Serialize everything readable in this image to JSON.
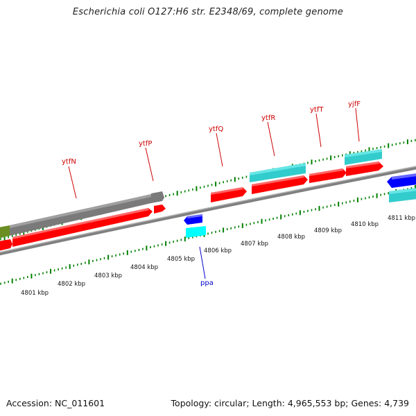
{
  "title": "Escherichia coli O127:H6 str. E2348/69, complete genome",
  "footer": {
    "accession_label": "Accession:",
    "accession": "NC_011601",
    "topology_label": "Topology:",
    "topology": "circular",
    "length_label": "Length:",
    "length": "4,965,553 bp",
    "genes_label": "Genes:",
    "genes": "4,739"
  },
  "colors": {
    "cds_forward": "#ff0000",
    "cds_reverse": "#0000ff",
    "rna": "#00cccc",
    "pseudo": "#777777",
    "other": "#6b8e23",
    "tick": "#008000",
    "backbone": "#808080",
    "label_forward": "#cc0000",
    "label_reverse": "#0000cc"
  },
  "gene_labels": [
    {
      "name": "ytfN",
      "strand": "forward"
    },
    {
      "name": "ytfP",
      "strand": "forward"
    },
    {
      "name": "ytfQ",
      "strand": "forward"
    },
    {
      "name": "ytfR",
      "strand": "forward"
    },
    {
      "name": "ytfT",
      "strand": "forward"
    },
    {
      "name": "yjfF",
      "strand": "forward"
    },
    {
      "name": "ppa",
      "strand": "reverse"
    }
  ],
  "kbp_labels": [
    "4801 kbp",
    "4802 kbp",
    "4803 kbp",
    "4804 kbp",
    "4805 kbp",
    "4806 kbp",
    "4807 kbp",
    "4808 kbp",
    "4809 kbp",
    "4810 kbp",
    "4811 kbp"
  ]
}
